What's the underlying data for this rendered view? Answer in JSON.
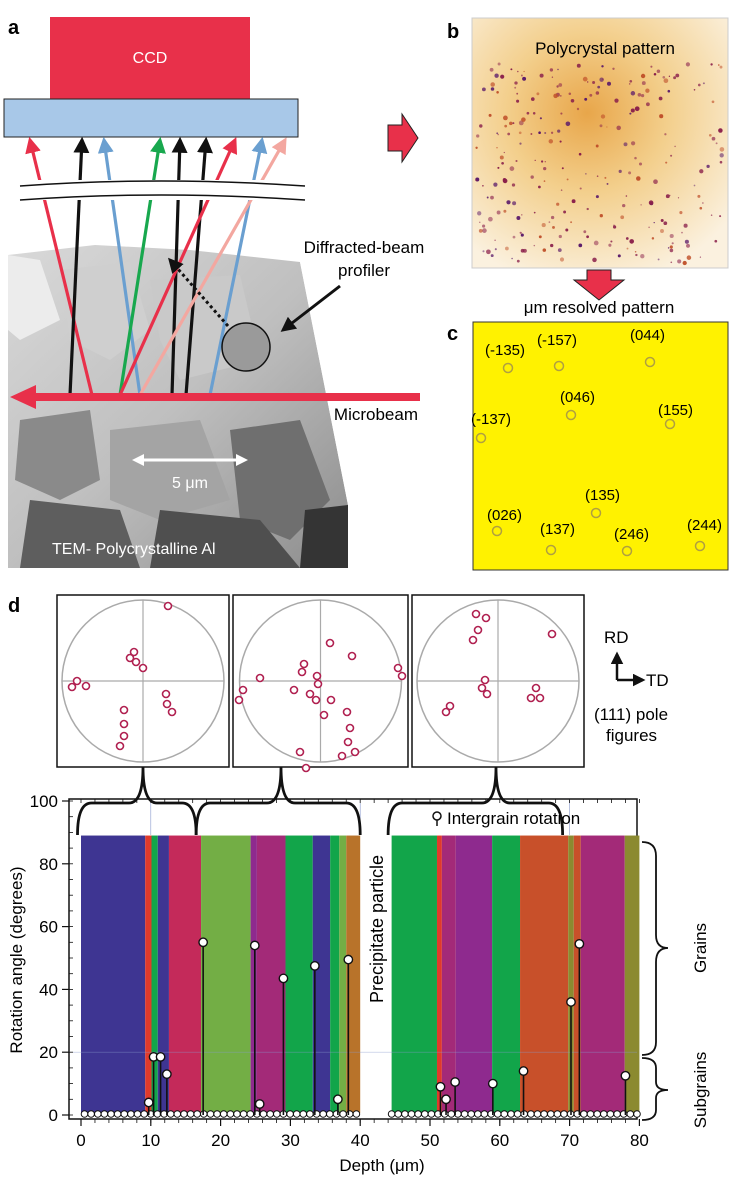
{
  "panels": {
    "a": {
      "letter": "a",
      "ccd_label": "CCD",
      "profiler_label_line1": "Diffracted-beam",
      "profiler_label_line2": "profiler",
      "microbeam_label": "Microbeam",
      "scale_bar_label": "5 μm",
      "tem_caption": "TEM- Polycrystalline Al"
    },
    "b": {
      "letter": "b",
      "title": "Polycrystal  pattern",
      "transition_label": "μm resolved pattern"
    },
    "c": {
      "letter": "c",
      "reflections": [
        "(-135)",
        "(-157)",
        "(044)",
        "(046)",
        "(155)",
        "(-137)",
        "(135)",
        "(026)",
        "(137)",
        "(246)",
        "(244)"
      ]
    },
    "d": {
      "letter": "d",
      "pole_figure_caption_line1": "(111) pole",
      "pole_figure_caption_line2": "figures",
      "axis_rd": "RD",
      "axis_td": "TD",
      "precipitate_label": "Precipitate particle",
      "legend_label": "Intergrain rotation",
      "grains_label": "Grains",
      "subgrains_label": "Subgrains"
    }
  },
  "colors": {
    "ccd": "#e8304a",
    "detector": "#a8c8e8",
    "microbeam": "#e8304a",
    "panel_c_bg": "#fff200",
    "stem_marker": "#ffffff"
  },
  "chart_data": {
    "type": "bar",
    "xlabel": "Depth (μm)",
    "ylabel": "Rotation angle (degrees)",
    "xlim": [
      -1,
      80
    ],
    "ylim": [
      0,
      100
    ],
    "xticks": [
      0,
      10,
      20,
      30,
      40,
      50,
      60,
      70,
      80
    ],
    "yticks": [
      0,
      20,
      40,
      60,
      80,
      100
    ],
    "grain_bands": [
      {
        "x0": 0,
        "x1": 9.2,
        "color": "#3e3592"
      },
      {
        "x0": 9.2,
        "x1": 10.1,
        "color": "#e03a2b"
      },
      {
        "x0": 10.1,
        "x1": 11.0,
        "color": "#12a54a"
      },
      {
        "x0": 11.0,
        "x1": 12.6,
        "color": "#3e3592"
      },
      {
        "x0": 12.6,
        "x1": 17.2,
        "color": "#c42a5a"
      },
      {
        "x0": 17.2,
        "x1": 24.3,
        "color": "#73ae45"
      },
      {
        "x0": 24.3,
        "x1": 25.2,
        "color": "#8e2a8e"
      },
      {
        "x0": 25.2,
        "x1": 29.3,
        "color": "#a32a78"
      },
      {
        "x0": 29.3,
        "x1": 33.2,
        "color": "#12a54a"
      },
      {
        "x0": 33.2,
        "x1": 35.7,
        "color": "#3e3592"
      },
      {
        "x0": 35.7,
        "x1": 37.0,
        "color": "#12a54a"
      },
      {
        "x0": 37.0,
        "x1": 38.0,
        "color": "#73ae45"
      },
      {
        "x0": 38.0,
        "x1": 40.0,
        "color": "#b8732a"
      },
      {
        "x0": 44.5,
        "x1": 51.0,
        "color": "#12a54a"
      },
      {
        "x0": 51.0,
        "x1": 51.7,
        "color": "#e03a2b"
      },
      {
        "x0": 51.7,
        "x1": 53.7,
        "color": "#a32a78"
      },
      {
        "x0": 53.7,
        "x1": 58.9,
        "color": "#8e2a8e"
      },
      {
        "x0": 58.9,
        "x1": 62.9,
        "color": "#12a54a"
      },
      {
        "x0": 62.9,
        "x1": 69.8,
        "color": "#c8502a"
      },
      {
        "x0": 69.8,
        "x1": 70.6,
        "color": "#8b8a30"
      },
      {
        "x0": 70.6,
        "x1": 71.6,
        "color": "#c8502a"
      },
      {
        "x0": 71.6,
        "x1": 77.9,
        "color": "#a32a78"
      },
      {
        "x0": 77.9,
        "x1": 80.0,
        "color": "#8b8a30"
      }
    ],
    "series": [
      {
        "name": "Intergrain rotation",
        "points": [
          [
            9.7,
            4
          ],
          [
            10.4,
            18.5
          ],
          [
            11.4,
            18.5
          ],
          [
            12.3,
            13
          ],
          [
            17.5,
            55
          ],
          [
            24.9,
            54
          ],
          [
            25.6,
            3.5
          ],
          [
            29.0,
            43.5
          ],
          [
            33.5,
            47.5
          ],
          [
            36.8,
            5
          ],
          [
            38.3,
            49.5
          ],
          [
            51.5,
            9
          ],
          [
            52.3,
            5
          ],
          [
            53.6,
            10.5
          ],
          [
            59.0,
            10
          ],
          [
            63.4,
            14
          ],
          [
            70.2,
            36
          ],
          [
            71.4,
            54.5
          ],
          [
            78.0,
            12.5
          ]
        ]
      }
    ],
    "baseline_point_spacing": 0.95,
    "braces_x_ranges": [
      [
        -0.5,
        16.5
      ],
      [
        16.5,
        40
      ],
      [
        44,
        69
      ]
    ]
  }
}
